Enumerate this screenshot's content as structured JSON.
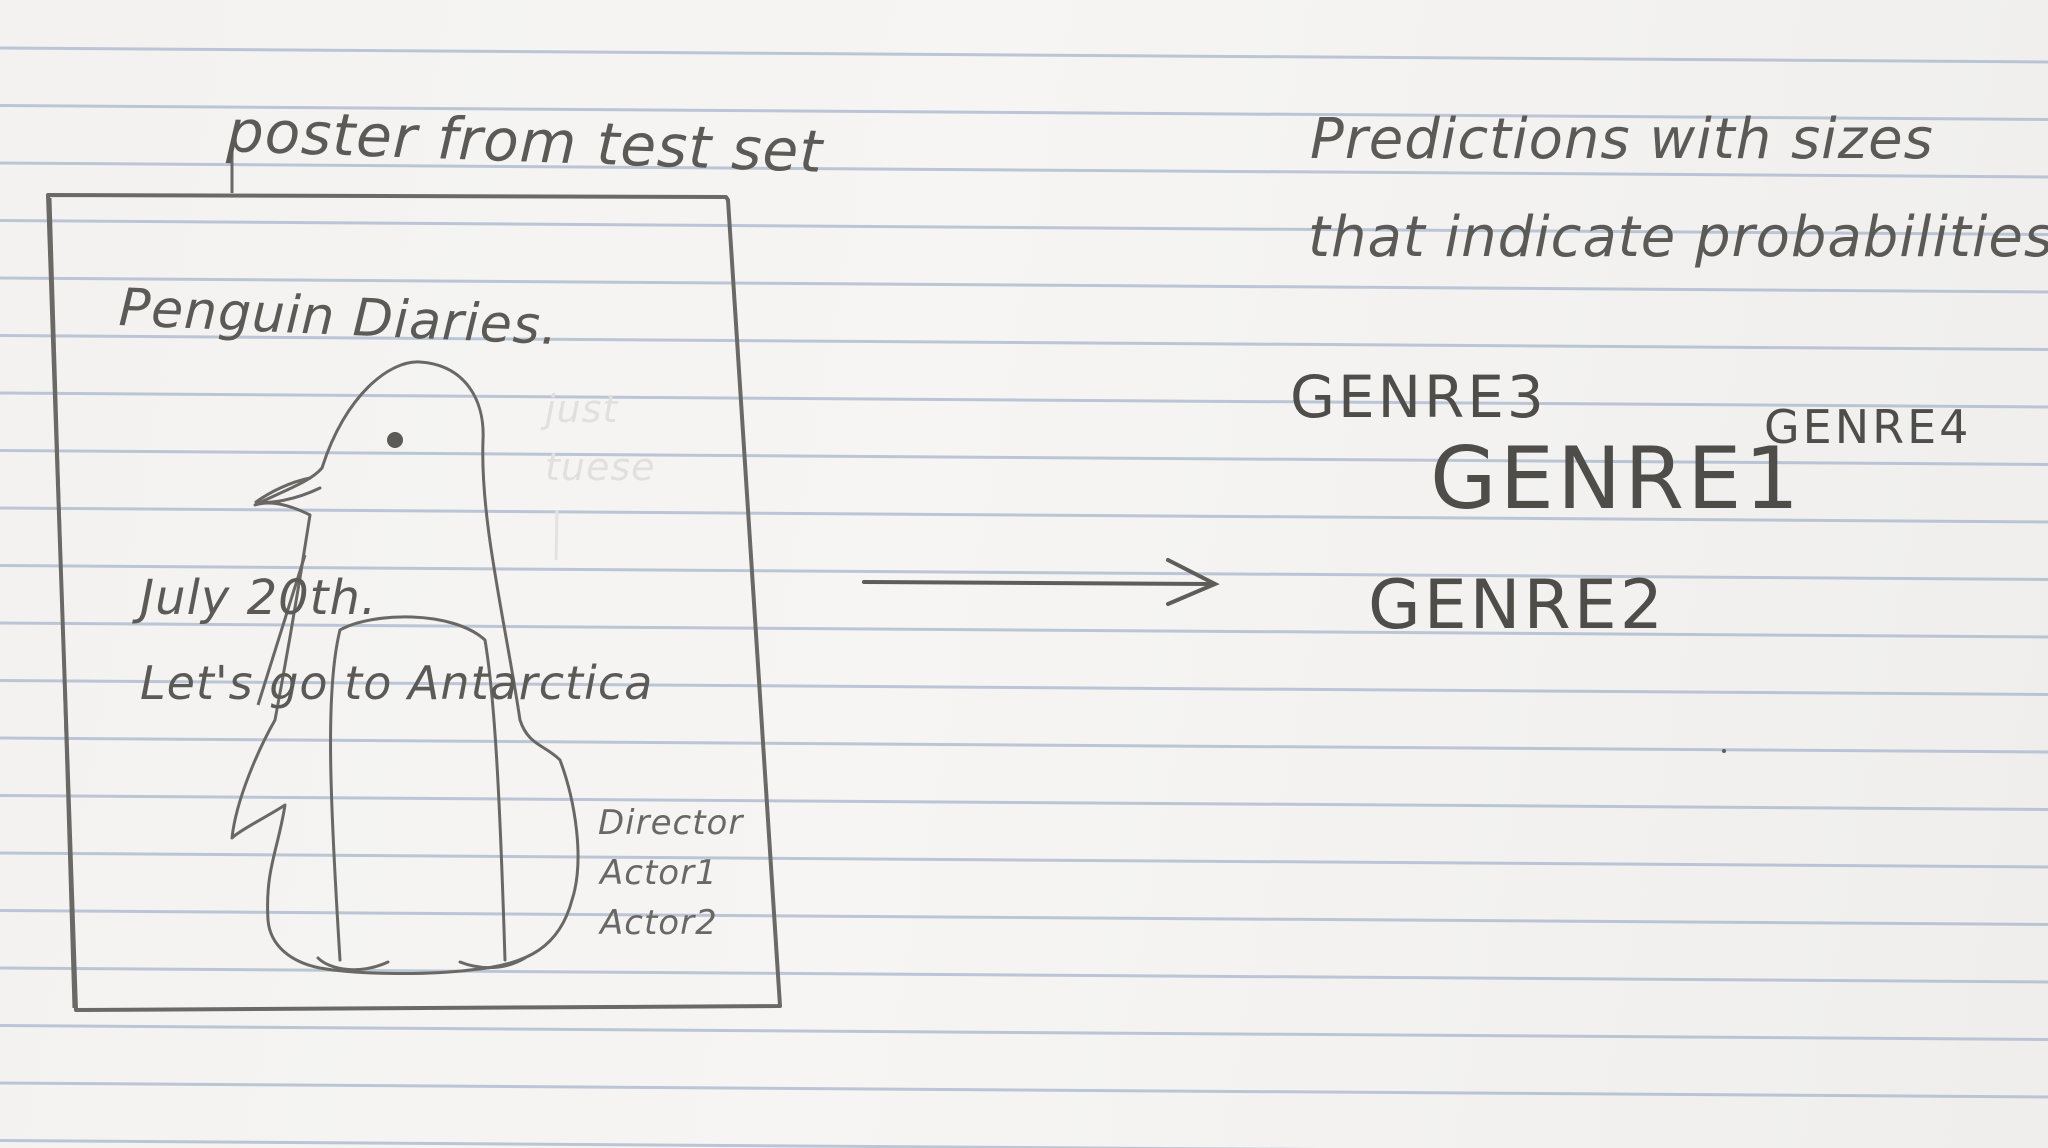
{
  "poster_caption": "poster from test set",
  "poster": {
    "title": "Penguin Diaries.",
    "date": "July 20th.",
    "tagline": "Let's go to Antarctica",
    "credits": [
      "Director",
      "Actor1",
      "Actor2"
    ],
    "faint_notes": [
      "just",
      "tuese"
    ]
  },
  "predictions_caption": {
    "line1": "Predictions with sizes",
    "line2": "that indicate probabilities"
  },
  "genres": {
    "g1": "GENRE1",
    "g2": "GENRE2",
    "g3": "GENRE3",
    "g4": "GENRE4"
  },
  "colors": {
    "paper": "#f3f2f0",
    "rule_lines": "#9fb0c8",
    "pencil": "#5c5a57"
  }
}
